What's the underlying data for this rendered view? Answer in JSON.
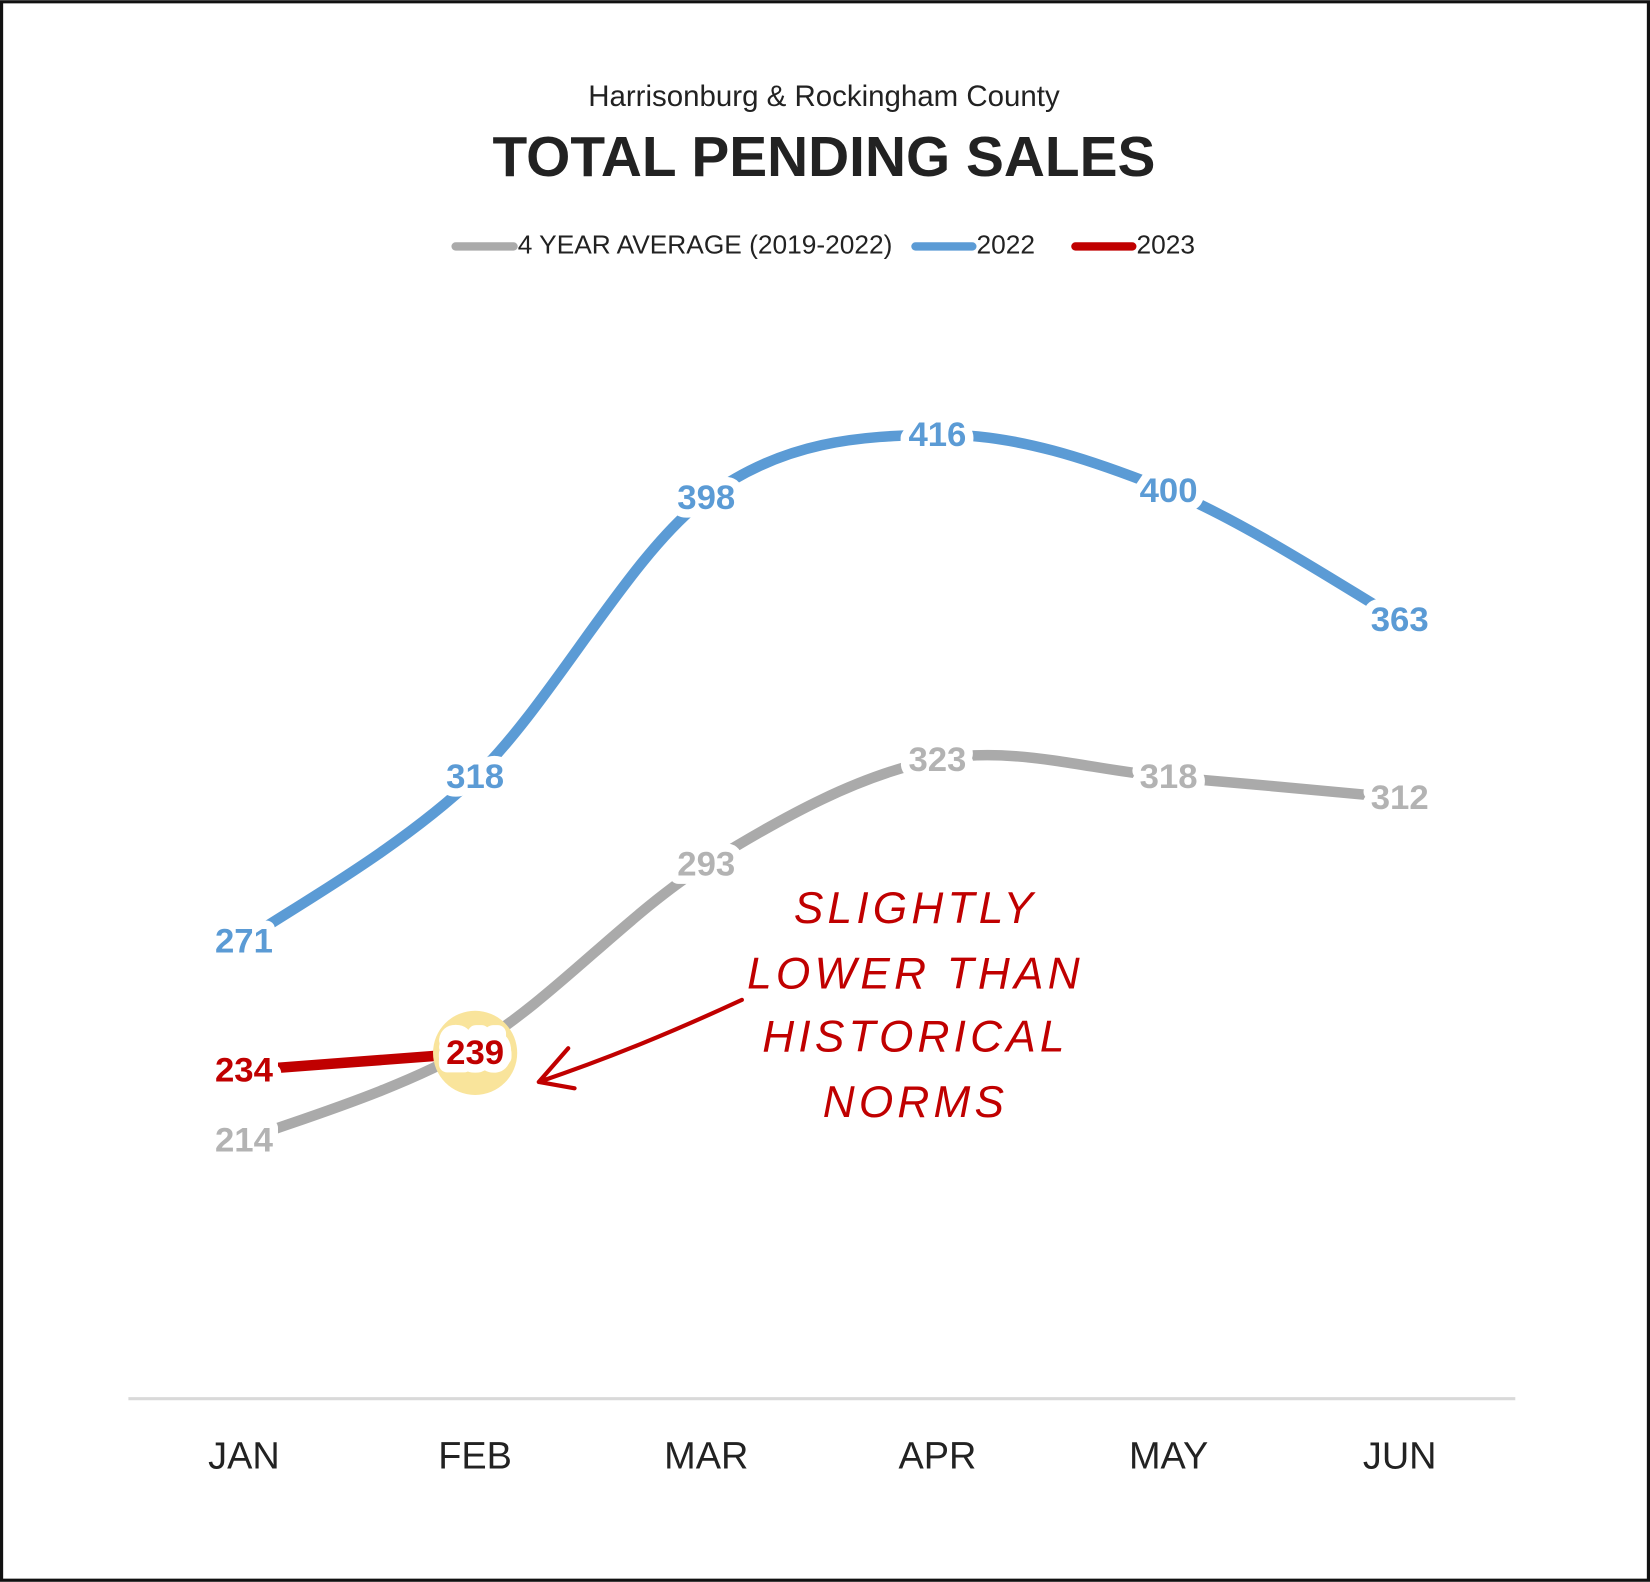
{
  "chart_data": {
    "type": "line",
    "subtitle": "Harrisonburg & Rockingham County",
    "title": "TOTAL PENDING SALES",
    "categories": [
      "JAN",
      "FEB",
      "MAR",
      "APR",
      "MAY",
      "JUN"
    ],
    "series": [
      {
        "name": "4 YEAR AVERAGE (2019-2022)",
        "color": "#aaaaaa",
        "label_color": "#b3b3b3",
        "values": [
          214,
          241,
          293,
          323,
          318,
          312
        ]
      },
      {
        "name": "2022",
        "color": "#5b9bd5",
        "label_color": "#5b9bd5",
        "values": [
          271,
          318,
          398,
          416,
          400,
          363
        ]
      },
      {
        "name": "2023",
        "color": "#c00000",
        "label_color": "#c00000",
        "values": [
          234,
          239,
          null,
          null,
          null,
          null
        ]
      }
    ],
    "annotation": [
      "SLIGHTLY",
      "LOWER THAN",
      "HISTORICAL",
      "NORMS"
    ],
    "ylim": [
      140,
      450
    ],
    "grid": false,
    "legend": "top"
  }
}
